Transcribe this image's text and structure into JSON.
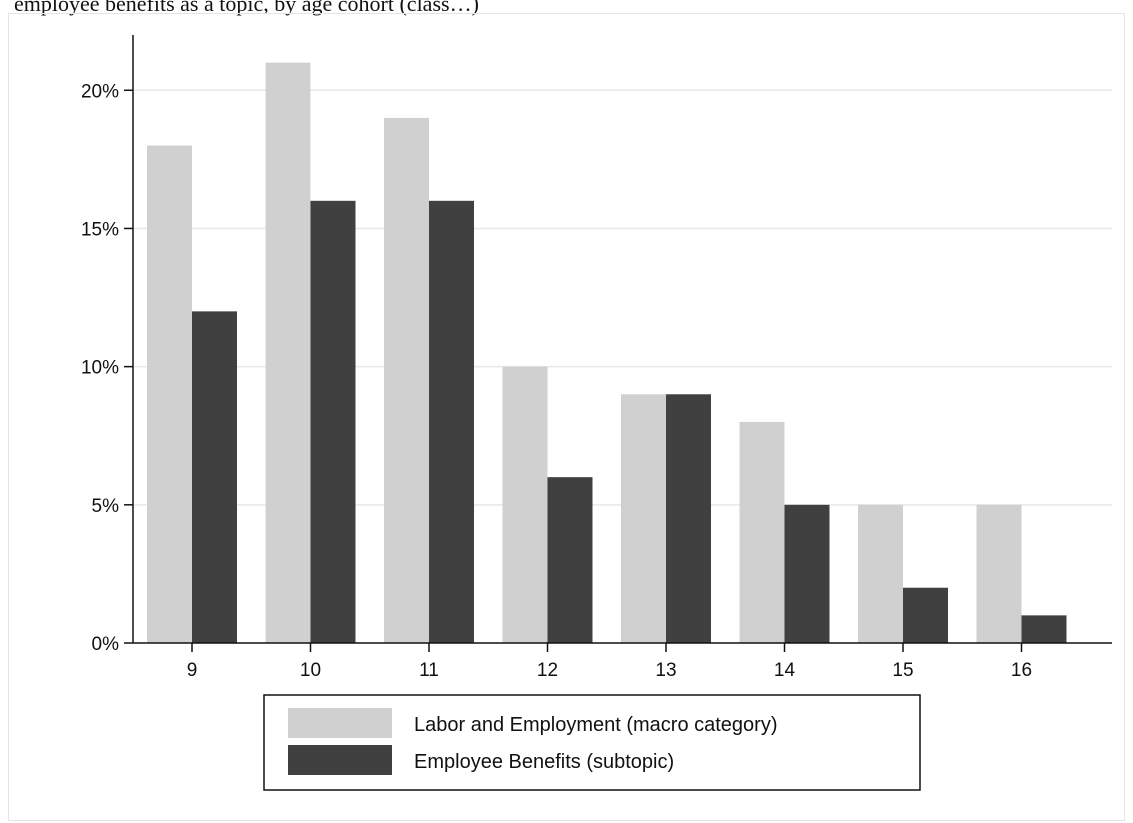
{
  "page": {
    "caption": "employee benefits as a topic, by age cohort (class…)"
  },
  "colors": {
    "series_1": "#d0d0d0",
    "series_2": "#404040",
    "grid": "#e8e8e8",
    "axis": "#111111"
  },
  "chart_data": {
    "type": "bar",
    "categories": [
      "9",
      "10",
      "11",
      "12",
      "13",
      "14",
      "15",
      "16"
    ],
    "series": [
      {
        "name": "Labor and Employment (macro category)",
        "values": [
          18,
          21,
          19,
          10,
          9,
          8,
          5,
          5
        ]
      },
      {
        "name": "Employee Benefits (subtopic)",
        "values": [
          12,
          16,
          16,
          6,
          9,
          5,
          2,
          1
        ]
      }
    ],
    "y_ticks": [
      0,
      5,
      10,
      15,
      20
    ],
    "y_tick_labels": [
      "0%",
      "5%",
      "10%",
      "15%",
      "20%"
    ],
    "ylim": [
      0,
      22
    ],
    "grid": true,
    "legend_position": "bottom"
  }
}
